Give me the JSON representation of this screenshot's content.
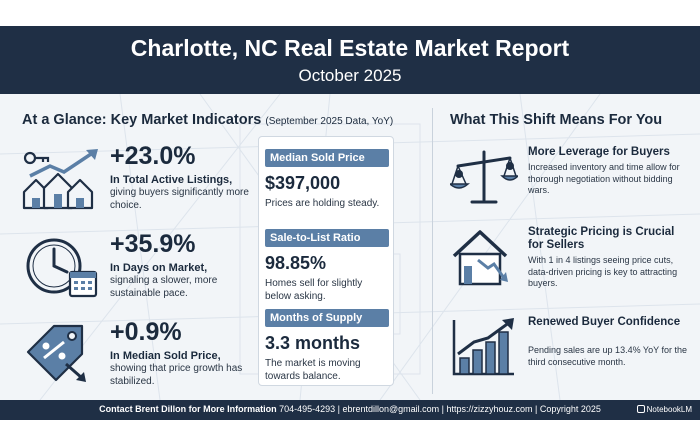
{
  "header": {
    "title": "Charlotte, NC Real Estate Market Report",
    "subtitle": "October 2025"
  },
  "indicators": {
    "heading": "At a Glance: Key Market Indicators",
    "heading_note": "(September 2025 Data, YoY)",
    "items": [
      {
        "value": "+23.0%",
        "lead": "In Total Active Listings,",
        "rest": "giving buyers significantly more choice.",
        "icon": "houses-key-rising-arrow-icon"
      },
      {
        "value": "+35.9%",
        "lead": "In Days on Market,",
        "rest": "signaling a slower, more sustainable pace.",
        "icon": "clock-calendar-icon"
      },
      {
        "value": "+0.9%",
        "lead": "In Median Sold Price,",
        "rest": "showing that price growth has stabilized.",
        "icon": "price-tag-percent-icon"
      }
    ]
  },
  "metrics": [
    {
      "label": "Median Sold Price",
      "value": "$397,000",
      "note": "Prices are holding steady."
    },
    {
      "label": "Sale-to-List Ratio",
      "value": "98.85%",
      "note": "Homes sell for slightly below asking."
    },
    {
      "label": "Months of Supply",
      "value": "3.3 months",
      "note": "The market is moving towards balance."
    }
  ],
  "shift": {
    "heading": "What This Shift Means For You",
    "items": [
      {
        "title": "More Leverage for Buyers",
        "desc": "Increased inventory and time allow for thorough negotiation without bidding wars.",
        "icon": "balance-scale-icon"
      },
      {
        "title": "Strategic Pricing is Crucial for Sellers",
        "desc": "With 1 in 4 listings seeing price cuts, data-driven pricing is key to attracting buyers.",
        "icon": "house-falling-chart-icon"
      },
      {
        "title": "Renewed Buyer Confidence",
        "desc": "Pending sales are up 13.4% YoY for the third consecutive month.",
        "icon": "rising-bar-chart-icon"
      }
    ]
  },
  "footer": {
    "lead": "Contact Brent Dillon for More Information",
    "details": "704-495-4293 | ebrentdillon@gmail.com | https://zizzyhouz.com | Copyright 2025",
    "brand": "NotebookLM"
  },
  "colors": {
    "navy": "#1f2f45",
    "accent_blue": "#5b7fa6",
    "background": "#f2f5f8"
  }
}
